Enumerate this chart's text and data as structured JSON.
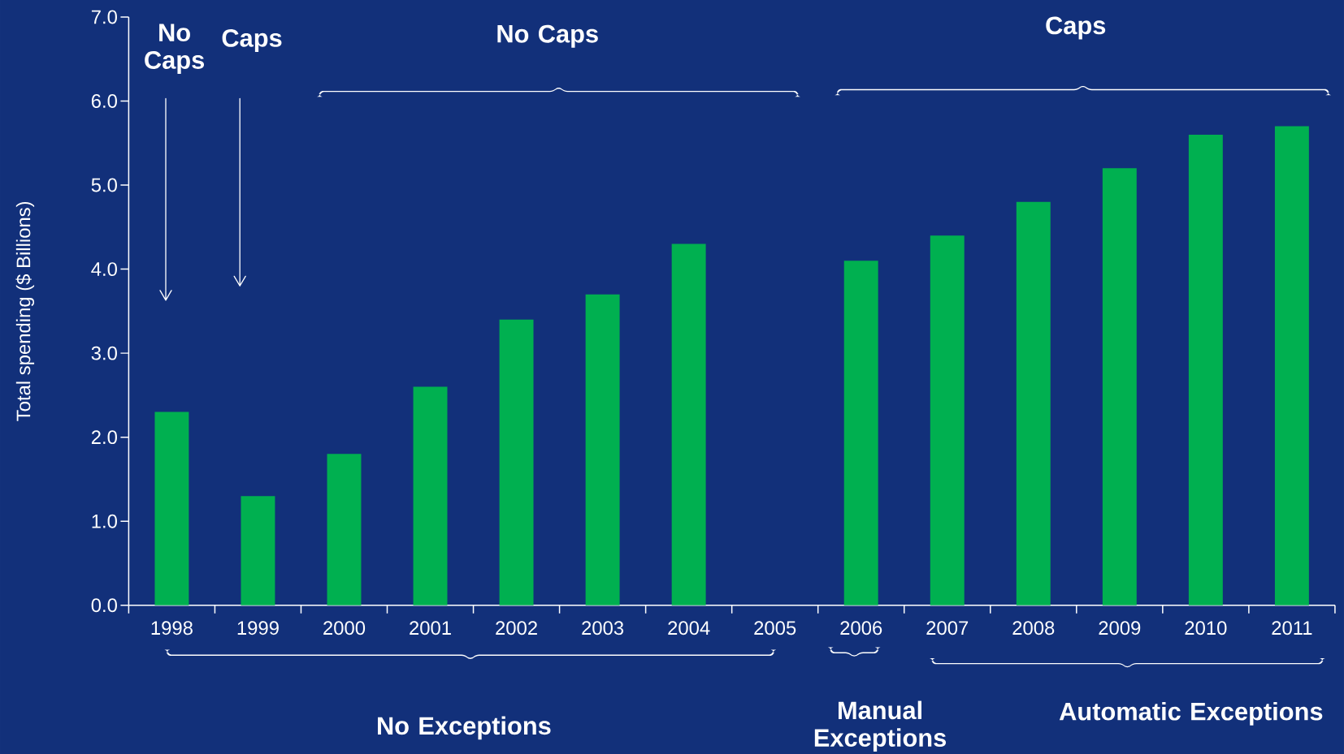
{
  "chart_data": {
    "type": "bar",
    "ylabel": "Total spending  ($ Billions)",
    "categories": [
      "1998",
      "1999",
      "2000",
      "2001",
      "2002",
      "2003",
      "2004",
      "2005",
      "2006",
      "2007",
      "2008",
      "2009",
      "2010",
      "2011"
    ],
    "values": [
      2.3,
      1.3,
      1.8,
      2.6,
      3.4,
      3.7,
      4.3,
      null,
      4.1,
      4.4,
      4.8,
      5.2,
      5.6,
      5.7
    ],
    "color": "#00b050",
    "ylim": [
      0,
      7
    ],
    "yticks": [
      {
        "value": 0,
        "label": "0.0"
      },
      {
        "value": 1,
        "label": "1.0"
      },
      {
        "value": 2,
        "label": "2.0"
      },
      {
        "value": 3,
        "label": "3.0"
      },
      {
        "value": 4,
        "label": "4.0"
      },
      {
        "value": 5,
        "label": "5.0"
      },
      {
        "value": 6,
        "label": "6.0"
      },
      {
        "value": 7,
        "label": "7.0"
      }
    ],
    "grid": false,
    "annotations": [
      "No Caps",
      "Caps",
      "No Caps",
      "Caps",
      "No Exceptions",
      "Manual Exceptions",
      "Automatic Exceptions"
    ]
  }
}
